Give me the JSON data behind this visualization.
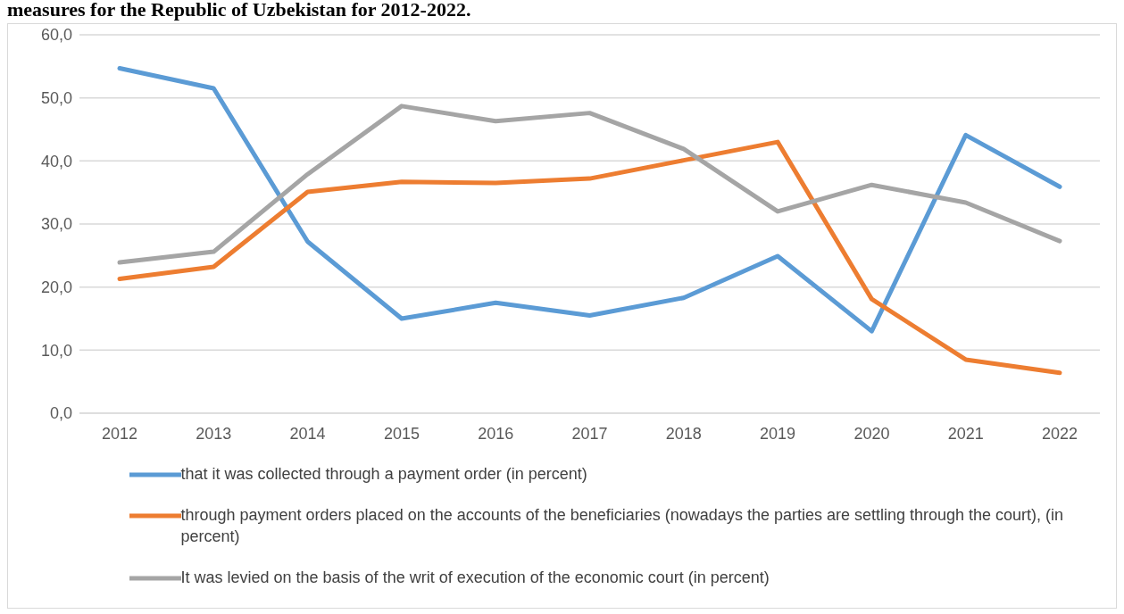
{
  "chart_data": {
    "type": "line",
    "title": "measures for the Republic of Uzbekistan for 2012-2022.",
    "categories": [
      "2012",
      "2013",
      "2014",
      "2015",
      "2016",
      "2017",
      "2018",
      "2019",
      "2020",
      "2021",
      "2022"
    ],
    "series": [
      {
        "name": "that it was collected through a payment order (in percent)",
        "color": "#5b9bd5",
        "values": [
          54.7,
          51.5,
          27.2,
          15.0,
          17.5,
          15.5,
          18.3,
          24.9,
          13.0,
          44.1,
          35.9
        ]
      },
      {
        "name": "through payment orders placed on the accounts of the beneficiaries (nowadays the parties are settling through the court), (in percent)",
        "color": "#ed7d31",
        "values": [
          21.3,
          23.2,
          35.1,
          36.7,
          36.5,
          37.2,
          40.1,
          43.0,
          18.1,
          8.5,
          6.4
        ]
      },
      {
        "name": "It was levied on the basis of the writ of execution of the economic court (in percent)",
        "color": "#a5a5a5",
        "values": [
          23.9,
          25.6,
          37.9,
          48.7,
          46.3,
          47.6,
          41.9,
          32.0,
          36.2,
          33.4,
          27.3
        ]
      }
    ],
    "ylim": [
      0,
      60
    ],
    "yticks": [
      {
        "value": 0,
        "label": "0,0"
      },
      {
        "value": 10,
        "label": "10,0"
      },
      {
        "value": 20,
        "label": "20,0"
      },
      {
        "value": 30,
        "label": "30,0"
      },
      {
        "value": 40,
        "label": "40,0"
      },
      {
        "value": 50,
        "label": "50,0"
      },
      {
        "value": 60,
        "label": "60,0"
      }
    ],
    "grid": "y",
    "legend": "bottom",
    "marker": "none",
    "line_style": "solid"
  }
}
